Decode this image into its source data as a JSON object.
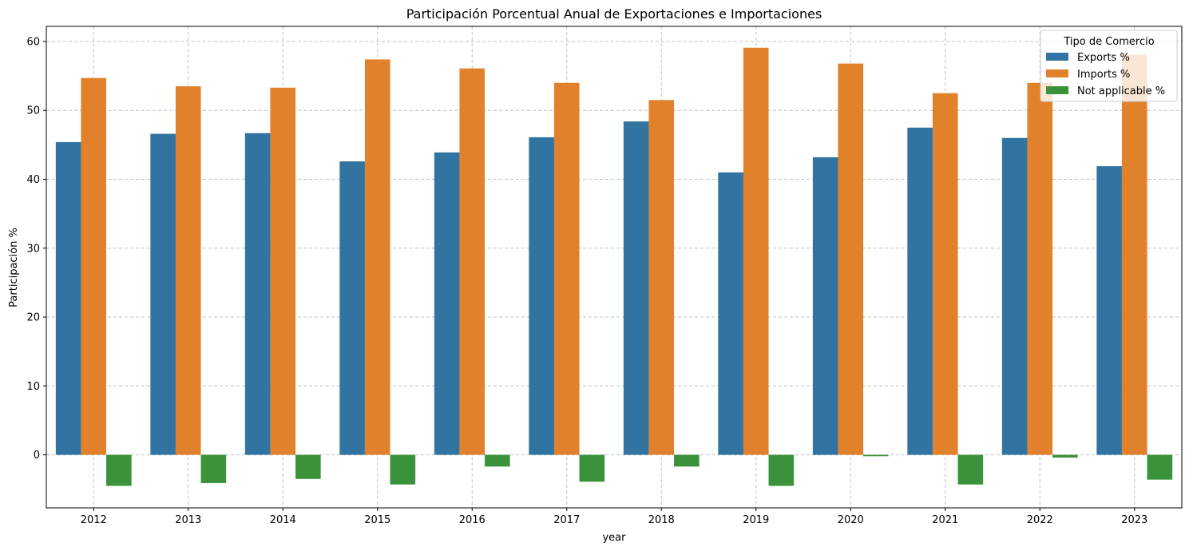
{
  "chart_data": {
    "type": "bar",
    "title": "Participación Porcentual Anual de Exportaciones e Importaciones",
    "xlabel": "year",
    "ylabel": "Participación %",
    "categories": [
      "2012",
      "2013",
      "2014",
      "2015",
      "2016",
      "2017",
      "2018",
      "2019",
      "2020",
      "2021",
      "2022",
      "2023"
    ],
    "series": [
      {
        "name": "Exports %",
        "color": "#3274a1",
        "values": [
          45.4,
          46.6,
          46.7,
          42.6,
          43.9,
          46.1,
          48.4,
          41.0,
          43.2,
          47.5,
          46.0,
          41.9
        ]
      },
      {
        "name": "Imports %",
        "color": "#e1812c",
        "values": [
          54.7,
          53.5,
          53.3,
          57.4,
          56.1,
          54.0,
          51.5,
          59.1,
          56.8,
          52.5,
          54.0,
          58.1
        ]
      },
      {
        "name": "Not applicable %",
        "color": "#3a923a",
        "values": [
          -4.5,
          -4.1,
          -3.5,
          -4.3,
          -1.7,
          -3.9,
          -1.7,
          -4.5,
          -0.2,
          -4.3,
          -0.4,
          -3.6
        ]
      }
    ],
    "ylim": [
      -7.7,
      62.2
    ],
    "yticks": [
      0,
      10,
      20,
      30,
      40,
      50,
      60
    ],
    "grid": true,
    "legend": {
      "title": "Tipo de Comercio",
      "placement": "top-right"
    }
  }
}
